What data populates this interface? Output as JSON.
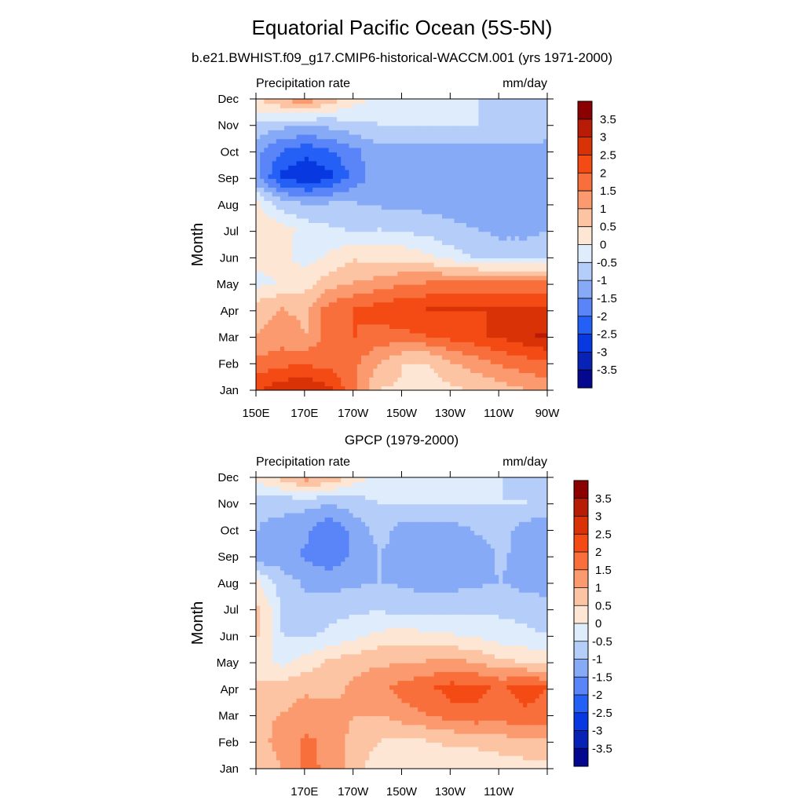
{
  "title": "Equatorial Pacific Ocean (5S-5N)",
  "subtitle": "b.e21.BWHIST.f09_g17.CMIP6-historical-WACCM.001 (yrs 1971-2000)",
  "colormap": {
    "levels": [
      "3.5",
      "3",
      "2.5",
      "2",
      "1.5",
      "1",
      "0.5",
      "0",
      "-0.5",
      "-1",
      "-1.5",
      "-2",
      "-2.5",
      "-3",
      "-3.5"
    ],
    "colors": [
      "#8b0000",
      "#b81c07",
      "#d83206",
      "#f44a14",
      "#f86f3c",
      "#fa9a6e",
      "#fcc4a2",
      "#fde6d4",
      "#dfecfb",
      "#b5cdf9",
      "#87aaf7",
      "#5985f8",
      "#2460f6",
      "#0838df",
      "#0722b4",
      "#04088e"
    ]
  },
  "chart_data": [
    {
      "type": "heatmap",
      "panel_title": "",
      "left_label": "Precipitation rate",
      "right_label": "mm/day",
      "ylabel": "Month",
      "y_ticks": [
        "Jan",
        "Feb",
        "Mar",
        "Apr",
        "May",
        "Jun",
        "Jul",
        "Aug",
        "Sep",
        "Oct",
        "Nov",
        "Dec"
      ],
      "x_ticks": [
        "150E",
        "170E",
        "170W",
        "150W",
        "130W",
        "110W",
        "90W"
      ],
      "x_tick_lon": [
        150,
        170,
        190,
        210,
        230,
        250,
        270
      ],
      "xlim": [
        150,
        270
      ],
      "lon": [
        150,
        160,
        170,
        180,
        190,
        200,
        210,
        220,
        230,
        240,
        250,
        260,
        270
      ],
      "z": [
        [
          2.4,
          2.8,
          2.9,
          2.6,
          1.5,
          0.5,
          0.4,
          0.3,
          0.4,
          0.6,
          0.8,
          1.0,
          1.2
        ],
        [
          1.6,
          1.8,
          1.9,
          1.7,
          1.6,
          1.0,
          0.5,
          0.5,
          1.0,
          1.3,
          1.6,
          1.8,
          2.0
        ],
        [
          1.0,
          1.2,
          1.0,
          1.8,
          2.0,
          1.8,
          1.9,
          2.0,
          2.2,
          2.4,
          2.6,
          2.9,
          3.1
        ],
        [
          0.8,
          1.0,
          0.9,
          1.8,
          2.0,
          2.2,
          2.4,
          2.5,
          2.5,
          2.5,
          2.5,
          2.5,
          2.6
        ],
        [
          -0.2,
          0.1,
          0.3,
          0.8,
          1.0,
          1.2,
          1.4,
          1.5,
          1.6,
          1.6,
          1.7,
          1.7,
          1.7
        ],
        [
          0.3,
          0.1,
          -0.2,
          0.1,
          0.4,
          0.3,
          0.3,
          0.1,
          -0.3,
          -0.6,
          -0.8,
          -0.8,
          -0.8
        ],
        [
          0.4,
          0.2,
          -0.2,
          -0.4,
          -0.6,
          -0.5,
          -0.6,
          -0.7,
          -0.9,
          -1.0,
          -1.1,
          -1.1,
          -1.0
        ],
        [
          0.0,
          -0.8,
          -1.1,
          -1.0,
          -1.0,
          -1.1,
          -1.1,
          -1.2,
          -1.2,
          -1.2,
          -1.2,
          -1.2,
          -1.3
        ],
        [
          -1.5,
          -2.6,
          -3.0,
          -2.6,
          -1.8,
          -1.2,
          -1.2,
          -1.2,
          -1.2,
          -1.2,
          -1.2,
          -1.2,
          -1.4
        ],
        [
          -1.4,
          -2.0,
          -2.3,
          -2.0,
          -1.6,
          -1.1,
          -1.1,
          -1.1,
          -1.1,
          -1.1,
          -1.1,
          -1.1,
          -1.2
        ],
        [
          -0.6,
          -0.8,
          -0.9,
          -0.8,
          -0.6,
          -0.5,
          -0.5,
          -0.5,
          -0.5,
          -0.5,
          -0.6,
          -0.6,
          -0.7
        ],
        [
          0.6,
          1.2,
          1.6,
          0.9,
          0.3,
          -0.2,
          -0.4,
          -0.4,
          -0.5,
          -0.5,
          -0.5,
          -0.5,
          -0.5
        ]
      ]
    },
    {
      "type": "heatmap",
      "panel_title": "GPCP (1979-2000)",
      "left_label": "Precipitation rate",
      "right_label": "mm/day",
      "ylabel": "Month",
      "y_ticks": [
        "Jan",
        "Feb",
        "Mar",
        "Apr",
        "May",
        "Jun",
        "Jul",
        "Aug",
        "Sep",
        "Oct",
        "Nov",
        "Dec"
      ],
      "x_ticks": [
        "170E",
        "170W",
        "150W",
        "130W",
        "110W"
      ],
      "x_tick_lon": [
        170,
        190,
        210,
        230,
        250
      ],
      "xlim": [
        150,
        270
      ],
      "lon": [
        150,
        160,
        170,
        180,
        190,
        200,
        210,
        220,
        230,
        240,
        250,
        260,
        270
      ],
      "z": [
        [
          0.6,
          1.0,
          1.6,
          1.4,
          0.6,
          0.3,
          0.2,
          0.2,
          0.2,
          0.1,
          0.2,
          0.3,
          0.4
        ],
        [
          0.8,
          1.2,
          1.6,
          1.3,
          0.8,
          0.5,
          0.4,
          0.5,
          0.6,
          0.7,
          0.8,
          0.9,
          1.0
        ],
        [
          0.9,
          1.0,
          1.2,
          1.2,
          1.0,
          1.0,
          1.3,
          1.5,
          1.8,
          1.9,
          1.8,
          1.9,
          1.8
        ],
        [
          0.6,
          0.8,
          0.9,
          0.8,
          1.1,
          1.4,
          1.7,
          1.9,
          2.2,
          2.1,
          1.9,
          2.2,
          2.0
        ],
        [
          0.3,
          -0.2,
          0.2,
          0.6,
          0.8,
          0.9,
          0.9,
          1.0,
          1.1,
          0.9,
          0.6,
          0.4,
          0.3
        ],
        [
          0.5,
          -0.5,
          -0.6,
          -0.4,
          -0.2,
          0.1,
          0.2,
          0.1,
          0.0,
          -0.1,
          -0.3,
          -0.4,
          -0.5
        ],
        [
          0.6,
          -0.6,
          -0.8,
          -0.7,
          -0.6,
          -0.6,
          -0.7,
          -0.7,
          -0.7,
          -0.6,
          -0.6,
          -0.7,
          -0.8
        ],
        [
          0.0,
          -0.8,
          -1.1,
          -1.2,
          -1.1,
          -1.0,
          -1.1,
          -1.2,
          -1.2,
          -1.1,
          -1.0,
          -1.2,
          -1.3
        ],
        [
          -1.4,
          -1.3,
          -1.6,
          -1.9,
          -1.4,
          -1.0,
          -1.2,
          -1.4,
          -1.4,
          -1.3,
          -0.9,
          -1.2,
          -1.4
        ],
        [
          -1.0,
          -1.2,
          -1.4,
          -1.9,
          -1.3,
          -0.8,
          -1.2,
          -1.3,
          -1.2,
          -0.9,
          -0.8,
          -1.2,
          -1.4
        ],
        [
          -0.9,
          -0.8,
          -0.8,
          -0.9,
          -0.7,
          -0.5,
          -0.4,
          -0.4,
          -0.4,
          -0.5,
          -0.5,
          -0.5,
          -0.6
        ],
        [
          0.3,
          0.8,
          1.4,
          1.0,
          0.3,
          -0.1,
          -0.4,
          -0.4,
          -0.5,
          -0.5,
          -0.5,
          -0.6,
          -0.6
        ]
      ]
    }
  ]
}
